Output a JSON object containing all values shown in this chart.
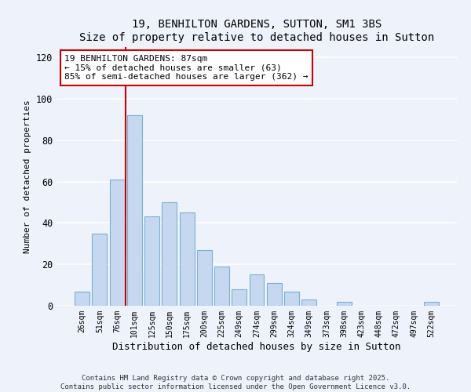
{
  "title": "19, BENHILTON GARDENS, SUTTON, SM1 3BS",
  "subtitle": "Size of property relative to detached houses in Sutton",
  "xlabel": "Distribution of detached houses by size in Sutton",
  "ylabel": "Number of detached properties",
  "bar_labels": [
    "26sqm",
    "51sqm",
    "76sqm",
    "101sqm",
    "125sqm",
    "150sqm",
    "175sqm",
    "200sqm",
    "225sqm",
    "249sqm",
    "274sqm",
    "299sqm",
    "324sqm",
    "349sqm",
    "373sqm",
    "398sqm",
    "423sqm",
    "448sqm",
    "472sqm",
    "497sqm",
    "522sqm"
  ],
  "bar_values": [
    7,
    35,
    61,
    92,
    43,
    50,
    45,
    27,
    19,
    8,
    15,
    11,
    7,
    3,
    0,
    2,
    0,
    0,
    0,
    0,
    2
  ],
  "bar_color": "#c5d8f0",
  "bar_edgecolor": "#7bafd4",
  "vline_color": "#cc0000",
  "annotation_text": "19 BENHILTON GARDENS: 87sqm\n← 15% of detached houses are smaller (63)\n85% of semi-detached houses are larger (362) →",
  "annotation_box_edgecolor": "#cc0000",
  "ylim": [
    0,
    125
  ],
  "yticks": [
    0,
    20,
    40,
    60,
    80,
    100,
    120
  ],
  "footer1": "Contains HM Land Registry data © Crown copyright and database right 2025.",
  "footer2": "Contains public sector information licensed under the Open Government Licence v3.0.",
  "bg_color": "#eef2fb",
  "grid_color": "#ffffff"
}
